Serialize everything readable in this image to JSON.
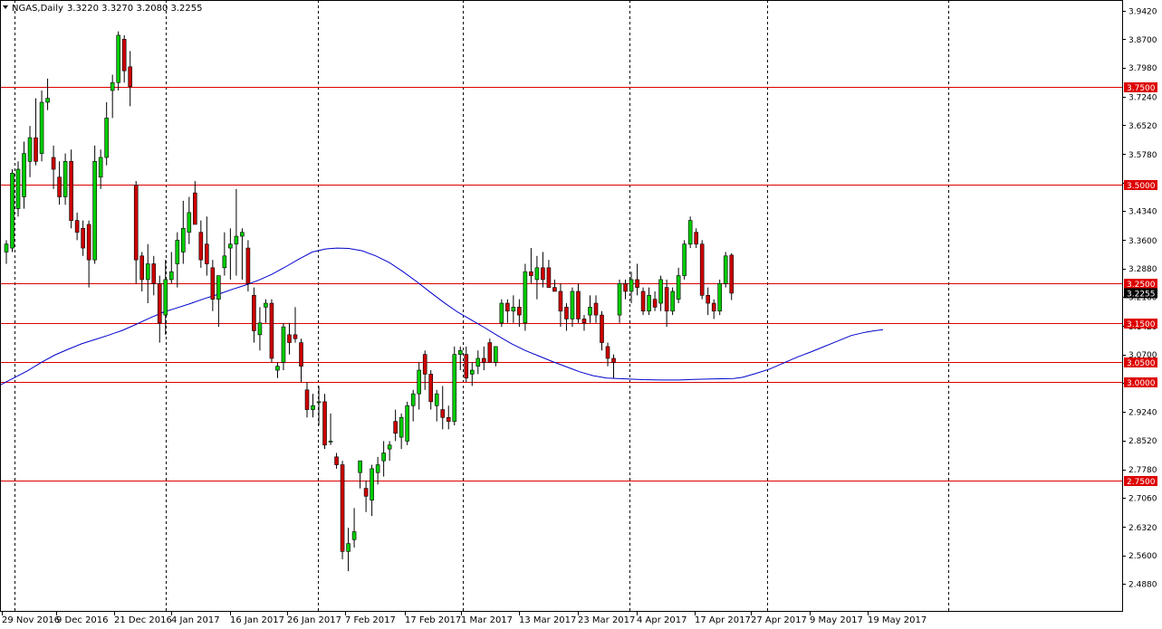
{
  "header": {
    "symbol": "NGAS,Daily",
    "ohlc": "3.3220 3.3270 3.2080 3.2255"
  },
  "colors": {
    "bull_candle": "#00cc00",
    "bear_candle": "#cc0000",
    "wick": "#000000",
    "ma_line": "#0000cc",
    "hline": "#dd0000",
    "grid_vertical": "#000000",
    "current_tag": "#000000"
  },
  "chart_data": {
    "type": "candlestick",
    "y_axis_ticks": [
      "3.9420",
      "3.8700",
      "3.7980",
      "3.7240",
      "3.6520",
      "3.5780",
      "3.5060",
      "3.4340",
      "3.3600",
      "3.2880",
      "3.2160",
      "3.1420",
      "3.0700",
      "2.9980",
      "2.9240",
      "2.8520",
      "2.7780",
      "2.7060",
      "2.6320",
      "2.5600",
      "2.4880"
    ],
    "x_axis_labels": [
      "29 Nov 2016",
      "9 Dec 2016",
      "21 Dec 2016",
      "4 Jan 2017",
      "16 Jan 2017",
      "26 Jan 2017",
      "7 Feb 2017",
      "17 Feb 2017",
      "1 Mar 2017",
      "13 Mar 2017",
      "23 Mar 2017",
      "4 Apr 2017",
      "17 Apr 2017",
      "27 Apr 2017",
      "9 May 2017",
      "19 May 2017"
    ],
    "horizontal_levels": [
      "3.7500",
      "3.5000",
      "3.2500",
      "3.1500",
      "3.0500",
      "3.0000",
      "2.7500"
    ],
    "current_price": "3.2255",
    "ylim": [
      2.488,
      3.942
    ],
    "candles": [
      {
        "o": 3.33,
        "h": 3.36,
        "l": 3.3,
        "c": 3.35
      },
      {
        "o": 3.34,
        "h": 3.54,
        "l": 3.33,
        "c": 3.53
      },
      {
        "o": 3.44,
        "h": 3.56,
        "l": 3.42,
        "c": 3.54
      },
      {
        "o": 3.47,
        "h": 3.61,
        "l": 3.44,
        "c": 3.58
      },
      {
        "o": 3.56,
        "h": 3.65,
        "l": 3.52,
        "c": 3.62
      },
      {
        "o": 3.62,
        "h": 3.72,
        "l": 3.55,
        "c": 3.56
      },
      {
        "o": 3.58,
        "h": 3.74,
        "l": 3.56,
        "c": 3.71
      },
      {
        "o": 3.71,
        "h": 3.77,
        "l": 3.69,
        "c": 3.72
      },
      {
        "o": 3.57,
        "h": 3.6,
        "l": 3.49,
        "c": 3.54
      },
      {
        "o": 3.52,
        "h": 3.56,
        "l": 3.45,
        "c": 3.47
      },
      {
        "o": 3.47,
        "h": 3.58,
        "l": 3.45,
        "c": 3.56
      },
      {
        "o": 3.56,
        "h": 3.59,
        "l": 3.39,
        "c": 3.41
      },
      {
        "o": 3.41,
        "h": 3.43,
        "l": 3.36,
        "c": 3.38
      },
      {
        "o": 3.39,
        "h": 3.41,
        "l": 3.32,
        "c": 3.34
      },
      {
        "o": 3.4,
        "h": 3.41,
        "l": 3.24,
        "c": 3.31
      },
      {
        "o": 3.31,
        "h": 3.6,
        "l": 3.3,
        "c": 3.56
      },
      {
        "o": 3.52,
        "h": 3.59,
        "l": 3.49,
        "c": 3.57
      },
      {
        "o": 3.57,
        "h": 3.71,
        "l": 3.55,
        "c": 3.67
      },
      {
        "o": 3.74,
        "h": 3.78,
        "l": 3.67,
        "c": 3.76
      },
      {
        "o": 3.76,
        "h": 3.89,
        "l": 3.74,
        "c": 3.88
      },
      {
        "o": 3.87,
        "h": 3.88,
        "l": 3.76,
        "c": 3.79
      },
      {
        "o": 3.8,
        "h": 3.84,
        "l": 3.7,
        "c": 3.75
      },
      {
        "o": 3.5,
        "h": 3.51,
        "l": 3.25,
        "c": 3.31
      },
      {
        "o": 3.32,
        "h": 3.33,
        "l": 3.23,
        "c": 3.26
      },
      {
        "o": 3.26,
        "h": 3.35,
        "l": 3.2,
        "c": 3.3
      },
      {
        "o": 3.3,
        "h": 3.32,
        "l": 3.22,
        "c": 3.25
      },
      {
        "o": 3.25,
        "h": 3.27,
        "l": 3.1,
        "c": 3.15
      },
      {
        "o": 3.17,
        "h": 3.31,
        "l": 3.12,
        "c": 3.26
      },
      {
        "o": 3.26,
        "h": 3.33,
        "l": 3.25,
        "c": 3.28
      },
      {
        "o": 3.3,
        "h": 3.38,
        "l": 3.24,
        "c": 3.36
      },
      {
        "o": 3.33,
        "h": 3.46,
        "l": 3.3,
        "c": 3.39
      },
      {
        "o": 3.38,
        "h": 3.47,
        "l": 3.35,
        "c": 3.43
      },
      {
        "o": 3.48,
        "h": 3.51,
        "l": 3.4,
        "c": 3.4
      },
      {
        "o": 3.38,
        "h": 3.41,
        "l": 3.29,
        "c": 3.31
      },
      {
        "o": 3.35,
        "h": 3.42,
        "l": 3.27,
        "c": 3.3
      },
      {
        "o": 3.29,
        "h": 3.31,
        "l": 3.18,
        "c": 3.21
      },
      {
        "o": 3.21,
        "h": 3.26,
        "l": 3.14,
        "c": 3.27
      },
      {
        "o": 3.29,
        "h": 3.38,
        "l": 3.27,
        "c": 3.32
      },
      {
        "o": 3.34,
        "h": 3.39,
        "l": 3.26,
        "c": 3.35
      },
      {
        "o": 3.35,
        "h": 3.49,
        "l": 3.27,
        "c": 3.37
      },
      {
        "o": 3.37,
        "h": 3.39,
        "l": 3.26,
        "c": 3.38
      },
      {
        "o": 3.34,
        "h": 3.36,
        "l": 3.23,
        "c": 3.25
      },
      {
        "o": 3.22,
        "h": 3.24,
        "l": 3.1,
        "c": 3.13
      },
      {
        "o": 3.12,
        "h": 3.19,
        "l": 3.08,
        "c": 3.15
      },
      {
        "o": 3.19,
        "h": 3.21,
        "l": 3.15,
        "c": 3.2
      },
      {
        "o": 3.2,
        "h": 3.21,
        "l": 3.05,
        "c": 3.06
      },
      {
        "o": 3.03,
        "h": 3.05,
        "l": 3.01,
        "c": 3.04
      },
      {
        "o": 3.05,
        "h": 3.15,
        "l": 3.03,
        "c": 3.14
      },
      {
        "o": 3.12,
        "h": 3.15,
        "l": 3.07,
        "c": 3.1
      },
      {
        "o": 3.12,
        "h": 3.19,
        "l": 3.1,
        "c": 3.11
      },
      {
        "o": 3.1,
        "h": 3.11,
        "l": 3.0,
        "c": 3.04
      },
      {
        "o": 2.98,
        "h": 3.0,
        "l": 2.91,
        "c": 2.93
      },
      {
        "o": 2.93,
        "h": 2.97,
        "l": 2.91,
        "c": 2.94
      },
      {
        "o": 2.95,
        "h": 2.99,
        "l": 2.89,
        "c": 2.95
      },
      {
        "o": 2.95,
        "h": 2.97,
        "l": 2.83,
        "c": 2.84
      },
      {
        "o": 2.85,
        "h": 2.92,
        "l": 2.84,
        "c": 2.85
      },
      {
        "o": 2.81,
        "h": 2.82,
        "l": 2.78,
        "c": 2.79
      },
      {
        "o": 2.79,
        "h": 2.8,
        "l": 2.55,
        "c": 2.57
      },
      {
        "o": 2.57,
        "h": 2.63,
        "l": 2.52,
        "c": 2.59
      },
      {
        "o": 2.6,
        "h": 2.68,
        "l": 2.58,
        "c": 2.62
      },
      {
        "o": 2.77,
        "h": 2.8,
        "l": 2.73,
        "c": 2.8
      },
      {
        "o": 2.73,
        "h": 2.75,
        "l": 2.67,
        "c": 2.71
      },
      {
        "o": 2.7,
        "h": 2.79,
        "l": 2.66,
        "c": 2.78
      },
      {
        "o": 2.77,
        "h": 2.81,
        "l": 2.74,
        "c": 2.79
      },
      {
        "o": 2.8,
        "h": 2.85,
        "l": 2.76,
        "c": 2.82
      },
      {
        "o": 2.83,
        "h": 2.85,
        "l": 2.8,
        "c": 2.84
      },
      {
        "o": 2.9,
        "h": 2.93,
        "l": 2.85,
        "c": 2.87
      },
      {
        "o": 2.86,
        "h": 2.92,
        "l": 2.83,
        "c": 2.91
      },
      {
        "o": 2.85,
        "h": 2.95,
        "l": 2.84,
        "c": 2.94
      },
      {
        "o": 2.94,
        "h": 2.98,
        "l": 2.9,
        "c": 2.97
      },
      {
        "o": 2.97,
        "h": 3.05,
        "l": 2.93,
        "c": 3.03
      },
      {
        "o": 3.07,
        "h": 3.08,
        "l": 2.98,
        "c": 3.02
      },
      {
        "o": 3.02,
        "h": 3.03,
        "l": 2.93,
        "c": 2.95
      },
      {
        "o": 2.94,
        "h": 2.98,
        "l": 2.9,
        "c": 2.97
      },
      {
        "o": 2.93,
        "h": 2.99,
        "l": 2.88,
        "c": 2.91
      },
      {
        "o": 2.91,
        "h": 2.94,
        "l": 2.88,
        "c": 2.9
      },
      {
        "o": 2.9,
        "h": 3.09,
        "l": 2.89,
        "c": 3.07
      },
      {
        "o": 3.07,
        "h": 3.09,
        "l": 3.03,
        "c": 3.08
      },
      {
        "o": 3.07,
        "h": 3.09,
        "l": 3.0,
        "c": 3.01
      },
      {
        "o": 3.02,
        "h": 3.05,
        "l": 2.99,
        "c": 3.03
      },
      {
        "o": 3.04,
        "h": 3.08,
        "l": 3.02,
        "c": 3.06
      },
      {
        "o": 3.06,
        "h": 3.09,
        "l": 3.03,
        "c": 3.05
      },
      {
        "o": 3.1,
        "h": 3.11,
        "l": 3.05,
        "c": 3.05
      },
      {
        "o": 3.05,
        "h": 3.09,
        "l": 3.04,
        "c": 3.09
      },
      {
        "o": 3.15,
        "h": 3.21,
        "l": 3.14,
        "c": 3.2
      },
      {
        "o": 3.2,
        "h": 3.21,
        "l": 3.15,
        "c": 3.18
      },
      {
        "o": 3.18,
        "h": 3.22,
        "l": 3.15,
        "c": 3.19
      },
      {
        "o": 3.19,
        "h": 3.21,
        "l": 3.14,
        "c": 3.17
      },
      {
        "o": 3.15,
        "h": 3.3,
        "l": 3.13,
        "c": 3.28
      },
      {
        "o": 3.28,
        "h": 3.34,
        "l": 3.25,
        "c": 3.27
      },
      {
        "o": 3.26,
        "h": 3.32,
        "l": 3.21,
        "c": 3.29
      },
      {
        "o": 3.29,
        "h": 3.33,
        "l": 3.24,
        "c": 3.26
      },
      {
        "o": 3.29,
        "h": 3.31,
        "l": 3.24,
        "c": 3.24
      },
      {
        "o": 3.24,
        "h": 3.26,
        "l": 3.23,
        "c": 3.23
      },
      {
        "o": 3.23,
        "h": 3.25,
        "l": 3.14,
        "c": 3.18
      },
      {
        "o": 3.19,
        "h": 3.2,
        "l": 3.13,
        "c": 3.16
      },
      {
        "o": 3.16,
        "h": 3.24,
        "l": 3.14,
        "c": 3.23
      },
      {
        "o": 3.23,
        "h": 3.25,
        "l": 3.15,
        "c": 3.16
      },
      {
        "o": 3.16,
        "h": 3.17,
        "l": 3.13,
        "c": 3.15
      },
      {
        "o": 3.17,
        "h": 3.22,
        "l": 3.15,
        "c": 3.19
      },
      {
        "o": 3.2,
        "h": 3.22,
        "l": 3.15,
        "c": 3.17
      },
      {
        "o": 3.17,
        "h": 3.18,
        "l": 3.08,
        "c": 3.1
      },
      {
        "o": 3.09,
        "h": 3.1,
        "l": 3.04,
        "c": 3.06
      },
      {
        "o": 3.06,
        "h": 3.07,
        "l": 3.01,
        "c": 3.05
      },
      {
        "o": 3.17,
        "h": 3.26,
        "l": 3.15,
        "c": 3.25
      },
      {
        "o": 3.25,
        "h": 3.26,
        "l": 3.21,
        "c": 3.23
      },
      {
        "o": 3.23,
        "h": 3.28,
        "l": 3.2,
        "c": 3.26
      },
      {
        "o": 3.26,
        "h": 3.3,
        "l": 3.22,
        "c": 3.24
      },
      {
        "o": 3.23,
        "h": 3.24,
        "l": 3.17,
        "c": 3.18
      },
      {
        "o": 3.18,
        "h": 3.24,
        "l": 3.17,
        "c": 3.22
      },
      {
        "o": 3.21,
        "h": 3.23,
        "l": 3.18,
        "c": 3.19
      },
      {
        "o": 3.2,
        "h": 3.27,
        "l": 3.18,
        "c": 3.26
      },
      {
        "o": 3.24,
        "h": 3.26,
        "l": 3.14,
        "c": 3.18
      },
      {
        "o": 3.18,
        "h": 3.24,
        "l": 3.17,
        "c": 3.23
      },
      {
        "o": 3.21,
        "h": 3.29,
        "l": 3.2,
        "c": 3.27
      },
      {
        "o": 3.27,
        "h": 3.36,
        "l": 3.26,
        "c": 3.35
      },
      {
        "o": 3.35,
        "h": 3.42,
        "l": 3.34,
        "c": 3.41
      },
      {
        "o": 3.38,
        "h": 3.39,
        "l": 3.34,
        "c": 3.35
      },
      {
        "o": 3.35,
        "h": 3.36,
        "l": 3.21,
        "c": 3.22
      },
      {
        "o": 3.22,
        "h": 3.24,
        "l": 3.17,
        "c": 3.2
      },
      {
        "o": 3.2,
        "h": 3.21,
        "l": 3.16,
        "c": 3.18
      },
      {
        "o": 3.18,
        "h": 3.26,
        "l": 3.17,
        "c": 3.25
      },
      {
        "o": 3.25,
        "h": 3.33,
        "l": 3.24,
        "c": 3.32
      },
      {
        "o": 3.322,
        "h": 3.327,
        "l": 3.208,
        "c": 3.2255
      }
    ],
    "ma_line": [
      [
        0,
        2.992
      ],
      [
        15,
        3.01
      ],
      [
        30,
        3.028
      ],
      [
        45,
        3.049
      ],
      [
        60,
        3.068
      ],
      [
        75,
        3.083
      ],
      [
        90,
        3.097
      ],
      [
        105,
        3.108
      ],
      [
        120,
        3.119
      ],
      [
        135,
        3.131
      ],
      [
        150,
        3.146
      ],
      [
        165,
        3.162
      ],
      [
        180,
        3.177
      ],
      [
        195,
        3.188
      ],
      [
        210,
        3.199
      ],
      [
        225,
        3.211
      ],
      [
        240,
        3.222
      ],
      [
        255,
        3.234
      ],
      [
        270,
        3.245
      ],
      [
        285,
        3.258
      ],
      [
        300,
        3.273
      ],
      [
        315,
        3.292
      ],
      [
        330,
        3.312
      ],
      [
        345,
        3.33
      ],
      [
        360,
        3.338
      ],
      [
        372,
        3.34
      ],
      [
        385,
        3.339
      ],
      [
        400,
        3.333
      ],
      [
        415,
        3.32
      ],
      [
        430,
        3.303
      ],
      [
        445,
        3.28
      ],
      [
        460,
        3.255
      ],
      [
        475,
        3.228
      ],
      [
        490,
        3.202
      ],
      [
        505,
        3.178
      ],
      [
        520,
        3.158
      ],
      [
        535,
        3.138
      ],
      [
        550,
        3.117
      ],
      [
        565,
        3.097
      ],
      [
        580,
        3.08
      ],
      [
        595,
        3.066
      ],
      [
        610,
        3.052
      ],
      [
        625,
        3.039
      ],
      [
        640,
        3.026
      ],
      [
        655,
        3.016
      ],
      [
        670,
        3.01
      ],
      [
        690,
        3.008
      ],
      [
        710,
        3.006
      ],
      [
        730,
        3.005
      ],
      [
        750,
        3.005
      ],
      [
        770,
        3.007
      ],
      [
        790,
        3.008
      ],
      [
        810,
        3.009
      ],
      [
        820,
        3.012
      ],
      [
        835,
        3.022
      ],
      [
        850,
        3.033
      ],
      [
        865,
        3.048
      ],
      [
        880,
        3.063
      ],
      [
        895,
        3.076
      ],
      [
        910,
        3.09
      ],
      [
        925,
        3.104
      ],
      [
        940,
        3.118
      ],
      [
        955,
        3.126
      ],
      [
        965,
        3.13
      ],
      [
        975,
        3.133
      ]
    ]
  }
}
